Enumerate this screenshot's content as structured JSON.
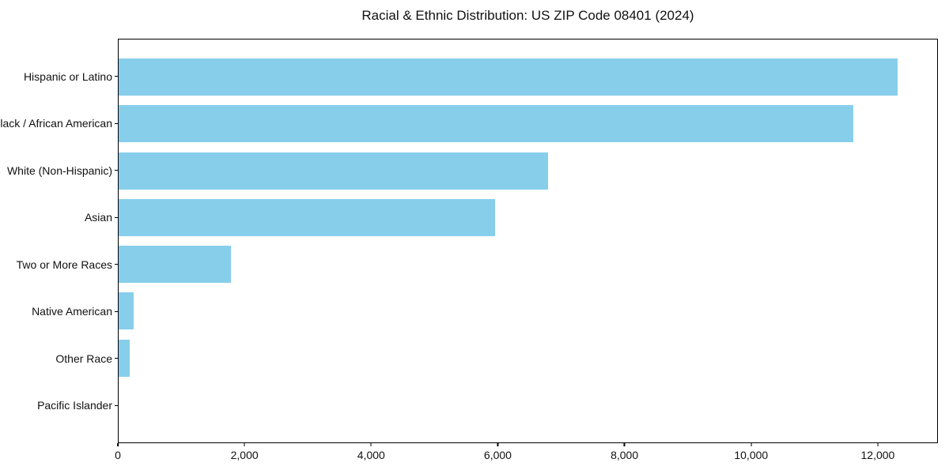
{
  "chart_data": {
    "type": "bar",
    "orientation": "horizontal",
    "title": "Racial & Ethnic Distribution: US ZIP Code 08401 (2024)",
    "categories": [
      "Hispanic or Latino",
      "Black / African American",
      "White (Non-Hispanic)",
      "Asian",
      "Two or More Races",
      "Native American",
      "Other Race",
      "Pacific Islander"
    ],
    "values": [
      12330,
      11620,
      6800,
      5960,
      1780,
      240,
      180,
      0
    ],
    "xlabel": "",
    "ylabel": "",
    "xlim": [
      0,
      12950
    ],
    "x_ticks": [
      0,
      2000,
      4000,
      6000,
      8000,
      10000,
      12000
    ],
    "x_tick_labels": [
      "0",
      "2,000",
      "4,000",
      "6,000",
      "8,000",
      "10,000",
      "12,000"
    ],
    "bar_color": "#87CEEB",
    "frame_color": "#000000",
    "background_color": "#ffffff",
    "grid": false,
    "legend": null,
    "value_labels_shown": false
  }
}
